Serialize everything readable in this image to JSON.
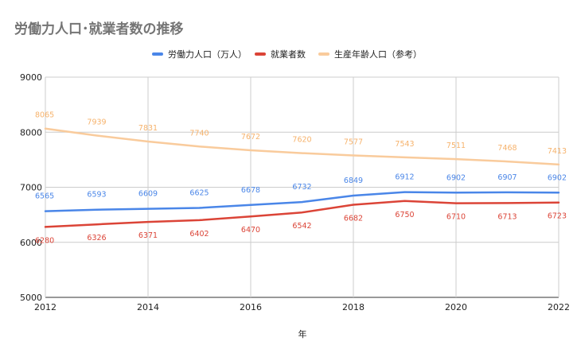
{
  "chart_data": {
    "type": "line",
    "title": "労働力人口･就業者数の推移",
    "xlabel": "年",
    "ylabel": "",
    "x": [
      2012,
      2013,
      2014,
      2015,
      2016,
      2017,
      2018,
      2019,
      2020,
      2021,
      2022
    ],
    "xlim": [
      2012,
      2022
    ],
    "ylim": [
      5000,
      9000
    ],
    "xticks": [
      2012,
      2014,
      2016,
      2018,
      2020,
      2022
    ],
    "yticks": [
      5000,
      6000,
      7000,
      8000,
      9000
    ],
    "grid": true,
    "legend_position": "top",
    "series": [
      {
        "name": "労働力人口（万人）",
        "color": "#4a86e8",
        "values": [
          6565,
          6593,
          6609,
          6625,
          6678,
          6732,
          6849,
          6912,
          6902,
          6907,
          6902
        ]
      },
      {
        "name": "就業者数",
        "color": "#db4437",
        "values": [
          6280,
          6326,
          6371,
          6402,
          6470,
          6542,
          6682,
          6750,
          6710,
          6713,
          6723
        ]
      },
      {
        "name": "生産年齢人口（参考）",
        "color": "#f9cb9c",
        "values": [
          8065,
          7939,
          7831,
          7740,
          7672,
          7620,
          7577,
          7543,
          7511,
          7468,
          7413
        ]
      }
    ]
  }
}
